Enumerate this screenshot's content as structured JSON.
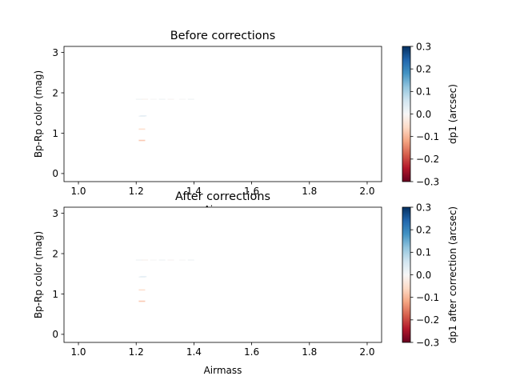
{
  "chart_data": [
    {
      "type": "scatter",
      "title": "Before corrections",
      "xlabel": "Airmass",
      "ylabel": "Bp-Rp color (mag)",
      "xlim": [
        0.95,
        2.05
      ],
      "ylim": [
        -0.2,
        3.15
      ],
      "xticks": [
        1.0,
        1.2,
        1.4,
        1.6,
        1.8,
        2.0
      ],
      "xtick_labels": [
        "1.0",
        "1.2",
        "1.4",
        "1.6",
        "1.8",
        "2.0"
      ],
      "yticks": [
        0,
        1,
        2,
        3
      ],
      "ytick_labels": [
        "0",
        "1",
        "2",
        "3"
      ],
      "colorbar": {
        "label": "dp1 (arcsec)",
        "colormap": "RdBu",
        "range": [
          -0.3,
          0.3
        ],
        "ticks": [
          -0.3,
          -0.2,
          -0.1,
          0.0,
          0.1,
          0.2,
          0.3
        ],
        "tick_labels": [
          "−0.3",
          "−0.2",
          "−0.1",
          "0.0",
          "0.1",
          "0.2",
          "0.3"
        ]
      },
      "points": [
        {
          "x": 1.21,
          "y": 1.84,
          "c": 0.01
        },
        {
          "x": 1.23,
          "y": 1.84,
          "c": -0.01
        },
        {
          "x": 1.26,
          "y": 1.84,
          "c": 0.0
        },
        {
          "x": 1.29,
          "y": 1.84,
          "c": 0.01
        },
        {
          "x": 1.32,
          "y": 1.84,
          "c": -0.005
        },
        {
          "x": 1.36,
          "y": 1.84,
          "c": 0.0
        },
        {
          "x": 1.39,
          "y": 1.84,
          "c": 0.01
        },
        {
          "x": 1.22,
          "y": 1.42,
          "c": 0.02
        },
        {
          "x": 1.225,
          "y": 1.43,
          "c": 0.03
        },
        {
          "x": 1.22,
          "y": 1.1,
          "c": -0.06
        },
        {
          "x": 1.22,
          "y": 0.82,
          "c": -0.09
        }
      ]
    },
    {
      "type": "scatter",
      "title": "After corrections",
      "xlabel": "Airmass",
      "ylabel": "Bp-Rp color (mag)",
      "xlim": [
        0.95,
        2.05
      ],
      "ylim": [
        -0.2,
        3.15
      ],
      "xticks": [
        1.0,
        1.2,
        1.4,
        1.6,
        1.8,
        2.0
      ],
      "xtick_labels": [
        "1.0",
        "1.2",
        "1.4",
        "1.6",
        "1.8",
        "2.0"
      ],
      "yticks": [
        0,
        1,
        2,
        3
      ],
      "ytick_labels": [
        "0",
        "1",
        "2",
        "3"
      ],
      "colorbar": {
        "label": "dp1 after correction (arcsec)",
        "colormap": "RdBu",
        "range": [
          -0.3,
          0.3
        ],
        "ticks": [
          -0.3,
          -0.2,
          -0.1,
          0.0,
          0.1,
          0.2,
          0.3
        ],
        "tick_labels": [
          "−0.3",
          "−0.2",
          "−0.1",
          "0.0",
          "0.1",
          "0.2",
          "0.3"
        ]
      },
      "points": [
        {
          "x": 1.21,
          "y": 1.84,
          "c": 0.01
        },
        {
          "x": 1.23,
          "y": 1.84,
          "c": -0.01
        },
        {
          "x": 1.26,
          "y": 1.84,
          "c": 0.0
        },
        {
          "x": 1.29,
          "y": 1.84,
          "c": 0.01
        },
        {
          "x": 1.32,
          "y": 1.84,
          "c": -0.005
        },
        {
          "x": 1.36,
          "y": 1.84,
          "c": 0.0
        },
        {
          "x": 1.39,
          "y": 1.84,
          "c": 0.01
        },
        {
          "x": 1.22,
          "y": 1.42,
          "c": 0.02
        },
        {
          "x": 1.225,
          "y": 1.43,
          "c": 0.03
        },
        {
          "x": 1.22,
          "y": 1.1,
          "c": -0.06
        },
        {
          "x": 1.22,
          "y": 0.82,
          "c": -0.09
        }
      ]
    }
  ]
}
